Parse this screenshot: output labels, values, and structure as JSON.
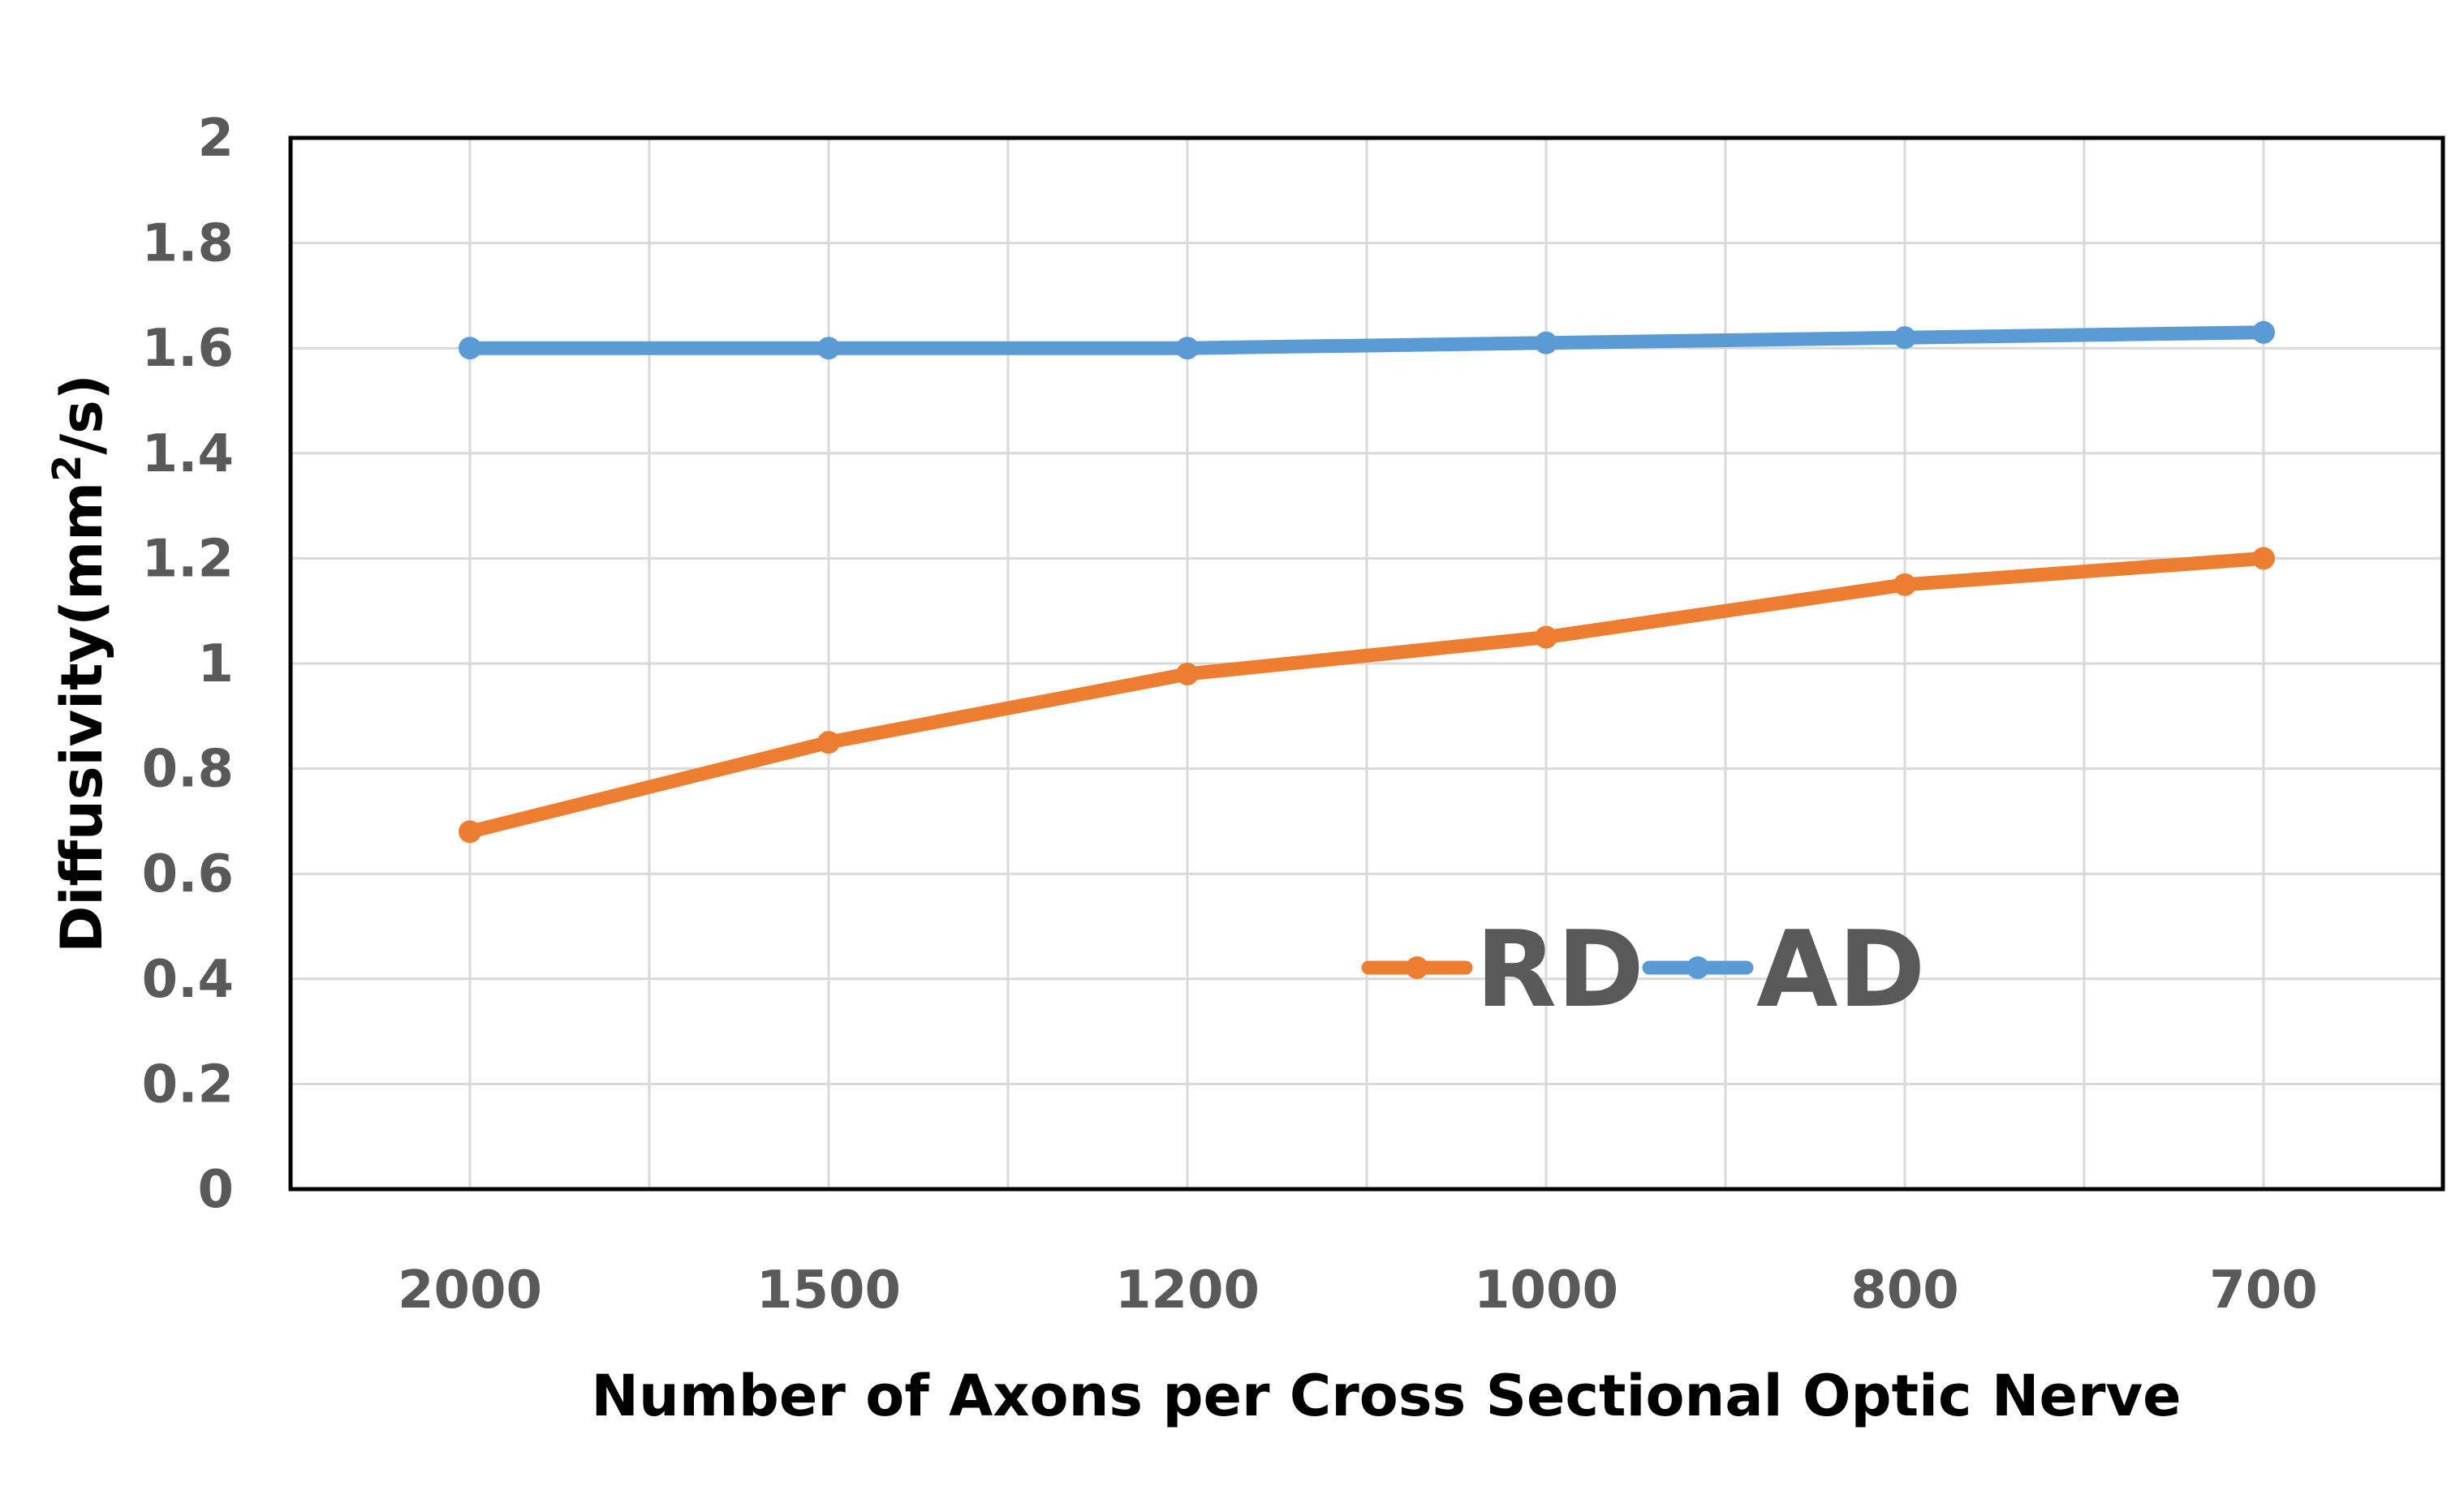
{
  "chart_data": {
    "type": "line",
    "title": "",
    "xlabel": "Number of Axons per Cross Sectional Optic Nerve",
    "ylabel_main": "Diffusivity(mm",
    "ylabel_sup": "2",
    "ylabel_end": "/s)",
    "categories": [
      "2000",
      "1500",
      "1200",
      "1000",
      "800",
      "700"
    ],
    "y_ticks": [
      "0",
      "0.2",
      "0.4",
      "0.6",
      "0.8",
      "1",
      "1.2",
      "1.4",
      "1.6",
      "1.8",
      "2"
    ],
    "ylim": [
      0,
      2
    ],
    "grid": true,
    "legend_position": "bottom-center",
    "series": [
      {
        "name": "RD",
        "color": "#ED7D31",
        "values": [
          0.68,
          0.85,
          0.98,
          1.05,
          1.15,
          1.2
        ]
      },
      {
        "name": "AD",
        "color": "#5B9BD5",
        "values": [
          1.6,
          1.6,
          1.6,
          1.61,
          1.62,
          1.63
        ]
      }
    ]
  }
}
